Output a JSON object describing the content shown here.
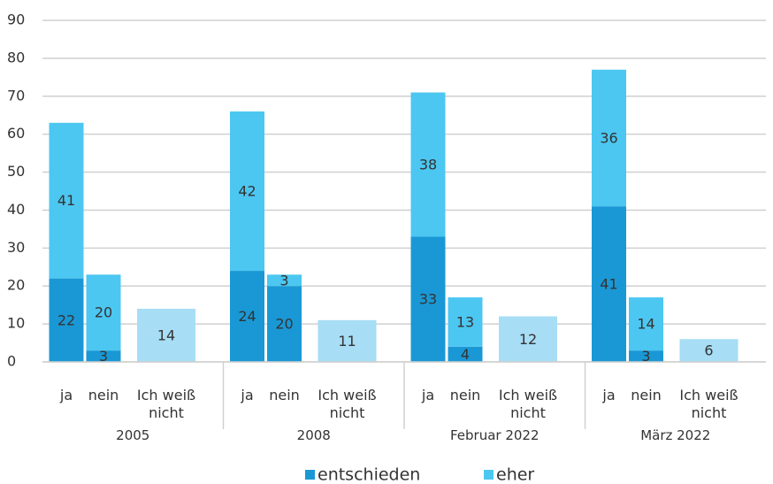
{
  "chart_data": {
    "type": "stacked_bar",
    "groups": [
      "2005",
      "2008",
      "Februar 2022",
      "März 2022"
    ],
    "categories": [
      "ja",
      "nein",
      "Ich weiß nicht",
      "ja",
      "nein",
      "Ich weiß nicht",
      "ja",
      "nein",
      "Ich weiß nicht",
      "ja",
      "nein",
      "Ich weiß nicht"
    ],
    "series": [
      {
        "name": "entschieden",
        "color": "#1a98d5",
        "values": [
          22,
          3,
          null,
          24,
          20,
          null,
          33,
          4,
          null,
          41,
          3,
          null
        ]
      },
      {
        "name": "eher",
        "color": "#4cc7f1",
        "values": [
          41,
          20,
          null,
          42,
          3,
          null,
          38,
          13,
          null,
          36,
          14,
          null
        ]
      },
      {
        "color": "#a7ddf5",
        "values": [
          null,
          null,
          14,
          null,
          null,
          11,
          null,
          null,
          12,
          null,
          null,
          6
        ]
      }
    ],
    "ylim": [
      0,
      90
    ],
    "yticks": [
      0,
      10,
      20,
      30,
      40,
      50,
      60,
      70,
      80,
      90
    ],
    "grid": true
  }
}
